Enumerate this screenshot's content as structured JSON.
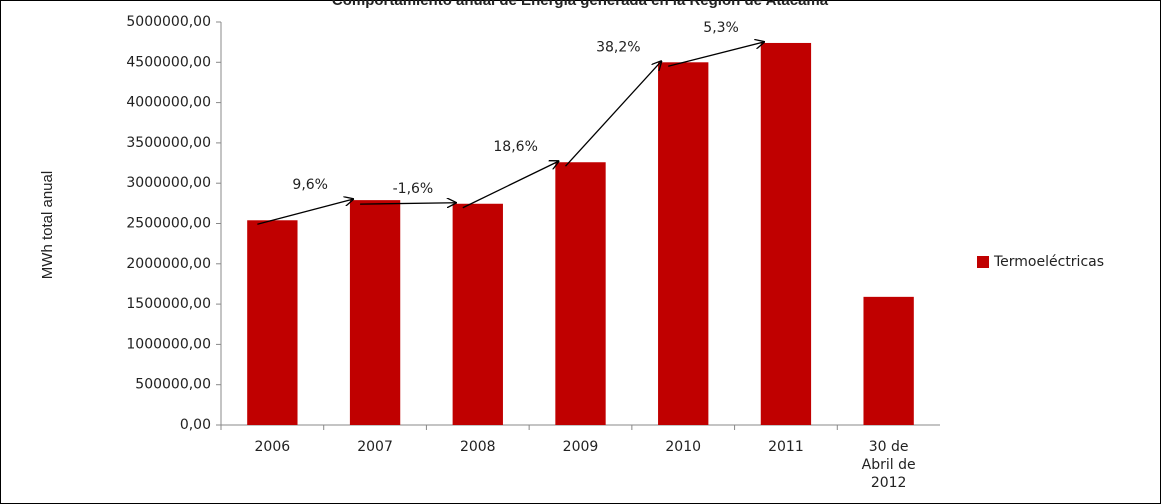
{
  "chart_data": {
    "type": "bar",
    "title": "Comportamiento anual de Energía generada en la Región de Atacama",
    "y_label": "MWh total anual",
    "categories": [
      "2006",
      "2007",
      "2008",
      "2009",
      "2010",
      "2011",
      "30 de Abril de 2012"
    ],
    "series": [
      {
        "name": "Termoeléctricas",
        "color": "#c00000",
        "values": [
          2540000,
          2790000,
          2745000,
          3260000,
          4500000,
          4740000,
          1590000
        ]
      }
    ],
    "annotations": [
      "9,6%",
      "-1,6%",
      "18,6%",
      "38,2%",
      "5,3%"
    ],
    "ylim": [
      0,
      5000000
    ],
    "yticks": [
      {
        "value": 0,
        "label": "0,00"
      },
      {
        "value": 500000,
        "label": "500000,00"
      },
      {
        "value": 1000000,
        "label": "1000000,00"
      },
      {
        "value": 1500000,
        "label": "1500000,00"
      },
      {
        "value": 2000000,
        "label": "2000000,00"
      },
      {
        "value": 2500000,
        "label": "2500000,00"
      },
      {
        "value": 3000000,
        "label": "3000000,00"
      },
      {
        "value": 3500000,
        "label": "3500000,00"
      },
      {
        "value": 4000000,
        "label": "4000000,00"
      },
      {
        "value": 4500000,
        "label": "4500000,00"
      },
      {
        "value": 5000000,
        "label": "5000000,00"
      }
    ],
    "grid": false,
    "legend": "right"
  }
}
